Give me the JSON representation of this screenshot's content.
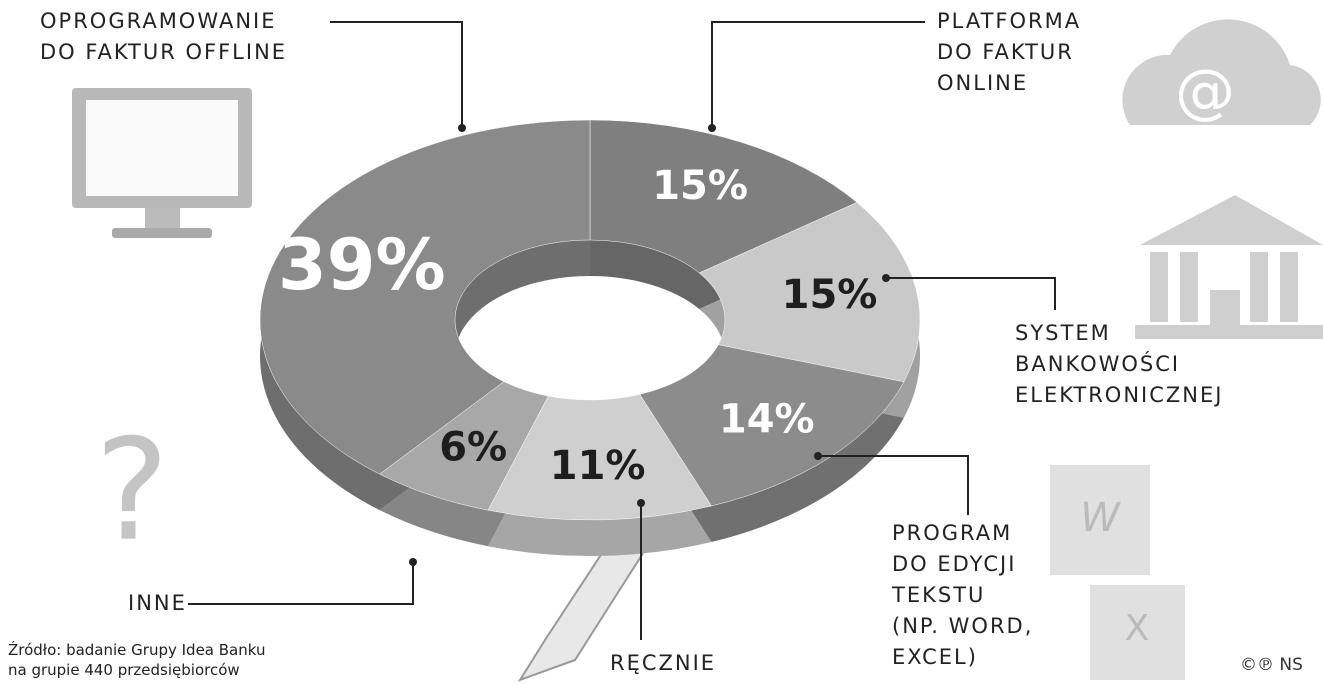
{
  "chart_data": {
    "type": "donut",
    "categories": [
      "PLATFORMA\nDO FAKTUR\nONLINE",
      "SYSTEM\nBANKOWOŚCI\nELEKTRONICZNEJ",
      "PROGRAM\nDO EDYCJI\nTEKSTU\n(NP. WORD,\nEXCEL)",
      "RĘCZNIE",
      "INNE",
      "OPROGRAMOWANIE\nDO FAKTUR OFFLINE"
    ],
    "values": [
      15,
      15,
      14,
      11,
      6,
      39
    ],
    "value_labels": [
      "15%",
      "15%",
      "14%",
      "11%",
      "6%",
      "39%"
    ],
    "colors": [
      "#7f7f7f",
      "#c9c9c9",
      "#8c8c8c",
      "#cfcfcf",
      "#a8a8a8",
      "#8a8a8a"
    ],
    "value_label_colors": [
      "#ffffff",
      "#1e1e1e",
      "#ffffff",
      "#1e1e1e",
      "#1e1e1e",
      "#ffffff"
    ],
    "source": "Źródło: badanie Grupy Idea Banku\nna grupie 440 przedsiębiorców",
    "credit": "©℗ NS"
  }
}
